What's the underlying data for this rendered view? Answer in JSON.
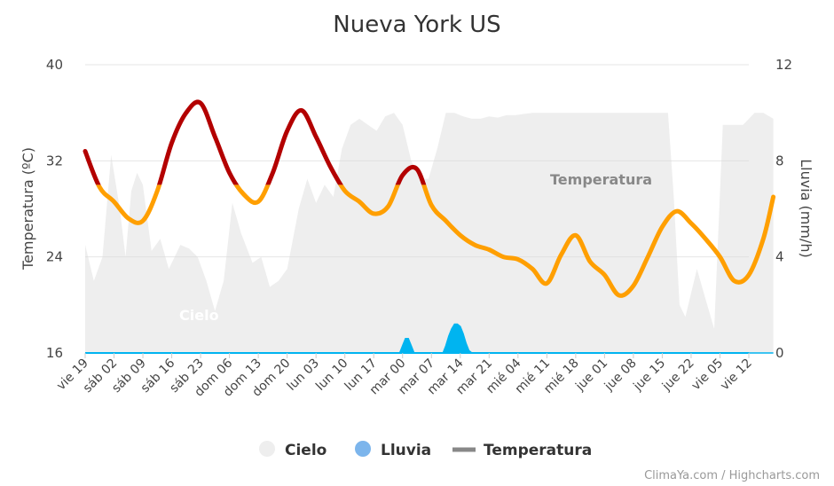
{
  "chart_data": {
    "type": "line",
    "title": "Nueva York US",
    "credits": "ClimaYa.com / Highcharts.com",
    "y_left": {
      "label": "Temperatura (ºC)",
      "min": 16,
      "max": 40,
      "ticks": [
        16,
        24,
        32,
        40
      ]
    },
    "y_right": {
      "label": "Lluvia (mm/h)",
      "min": 0,
      "max": 12,
      "ticks": [
        0,
        4,
        8,
        12
      ]
    },
    "x_ticks": [
      "vie 19",
      "sáb 02",
      "sáb 09",
      "sáb 16",
      "sáb 23",
      "dom 06",
      "dom 13",
      "dom 20",
      "lun 03",
      "lun 10",
      "lun 17",
      "mar 00",
      "mar 07",
      "mar 14",
      "mar 21",
      "mié 04",
      "mié 11",
      "mié 18",
      "jue 01",
      "jue 08",
      "jue 15",
      "jue 22",
      "vie 05",
      "vie 12"
    ],
    "grid": true,
    "legend_position": "bottom",
    "series": [
      {
        "name": "Temperatura",
        "axis": "left",
        "type": "line",
        "label": "Temperatura",
        "hot_color": "#b30000",
        "warm_color": "#ff9f00",
        "threshold": 30,
        "x": [
          0,
          0.5,
          1,
          1.5,
          2,
          2.5,
          3,
          3.5,
          4,
          4.5,
          5,
          5.5,
          6,
          6.5,
          7,
          7.5,
          8,
          8.5,
          9,
          9.5,
          10,
          10.5,
          11,
          11.5,
          12,
          12.5,
          13,
          13.5,
          14,
          14.5,
          15,
          15.5,
          16,
          16.5,
          17,
          17.5,
          18,
          18.5,
          19,
          19.5,
          20,
          20.5,
          21,
          21.5,
          22,
          22.5,
          23,
          23.5,
          23.85
        ],
        "values": [
          32.8,
          29.8,
          28.6,
          27.2,
          27.0,
          29.5,
          33.5,
          36.0,
          36.8,
          34.0,
          31.0,
          29.2,
          28.6,
          31.0,
          34.5,
          36.2,
          34.0,
          31.5,
          29.5,
          28.6,
          27.6,
          28.2,
          30.8,
          31.3,
          28.3,
          27.0,
          25.8,
          25.0,
          24.6,
          24.0,
          23.8,
          23.0,
          21.8,
          24.2,
          25.8,
          23.6,
          22.5,
          20.8,
          21.6,
          24.0,
          26.5,
          27.8,
          26.8,
          25.5,
          24.0,
          22.0,
          22.5,
          25.5,
          29.0
        ]
      },
      {
        "name": "Lluvia",
        "axis": "right",
        "type": "area",
        "color": "#00b4f0",
        "x": [
          0,
          10.9,
          11.0,
          11.1,
          11.2,
          11.3,
          11.4,
          12.4,
          12.5,
          12.6,
          12.7,
          12.8,
          12.9,
          13.0,
          13.1,
          13.2,
          13.3,
          13.4,
          23.85
        ],
        "values": [
          0,
          0,
          0.3,
          0.6,
          0.6,
          0.3,
          0,
          0,
          0.3,
          0.7,
          1.0,
          1.2,
          1.2,
          1.1,
          0.8,
          0.4,
          0.1,
          0,
          0
        ]
      },
      {
        "name": "Cielo",
        "axis": "left",
        "type": "area",
        "label": "Cielo",
        "color": "#eeeeee",
        "x": [
          0,
          0.3,
          0.6,
          0.9,
          1.2,
          1.4,
          1.6,
          1.8,
          2.0,
          2.3,
          2.6,
          2.9,
          3.1,
          3.3,
          3.6,
          3.9,
          4.2,
          4.5,
          4.8,
          5.1,
          5.4,
          5.8,
          6.1,
          6.4,
          6.7,
          7.0,
          7.4,
          7.7,
          8.0,
          8.3,
          8.6,
          8.9,
          9.2,
          9.5,
          9.8,
          10.1,
          10.4,
          10.7,
          11.0,
          11.3,
          11.6,
          11.9,
          12.2,
          12.5,
          12.8,
          13.1,
          13.4,
          13.7,
          14.0,
          14.3,
          14.6,
          14.9,
          15.2,
          15.5,
          15.8,
          16.1,
          16.4,
          16.7,
          17.0,
          17.4,
          17.8,
          18.2,
          18.6,
          19.0,
          19.4,
          19.8,
          20.2,
          20.4,
          20.6,
          20.8,
          21.0,
          21.2,
          21.5,
          21.8,
          22.1,
          22.4,
          22.8,
          23.2,
          23.5,
          23.85
        ],
        "values": [
          25.0,
          22.0,
          24.0,
          32.5,
          28.0,
          24.0,
          29.5,
          31.0,
          30.0,
          24.5,
          25.5,
          23.0,
          24.0,
          25.0,
          24.7,
          24.0,
          22.0,
          19.5,
          22.0,
          28.5,
          26.0,
          23.5,
          24.0,
          21.5,
          22.0,
          23.0,
          28.0,
          30.5,
          28.5,
          30.0,
          29.0,
          33.0,
          35.0,
          35.5,
          35.0,
          34.5,
          35.7,
          36.0,
          35.0,
          32.0,
          30.5,
          30.5,
          33.0,
          36.0,
          36.0,
          35.7,
          35.5,
          35.5,
          35.7,
          35.6,
          35.8,
          35.8,
          35.9,
          36.0,
          36.0,
          36.0,
          36.0,
          36.0,
          36.0,
          36.0,
          36.0,
          36.0,
          36.0,
          36.0,
          36.0,
          36.0,
          36.0,
          29.0,
          20.0,
          19.0,
          21.0,
          23.0,
          20.5,
          18.0,
          35.0,
          35.0,
          35.0,
          36.0,
          36.0,
          35.5
        ]
      }
    ]
  },
  "legend": {
    "items": [
      {
        "label": "Cielo",
        "color": "#eeeeee",
        "marker": "circle"
      },
      {
        "label": "Lluvia",
        "color": "#7cb5ec",
        "marker": "circle"
      },
      {
        "label": "Temperatura",
        "color": "#888888",
        "marker": "line"
      }
    ]
  }
}
